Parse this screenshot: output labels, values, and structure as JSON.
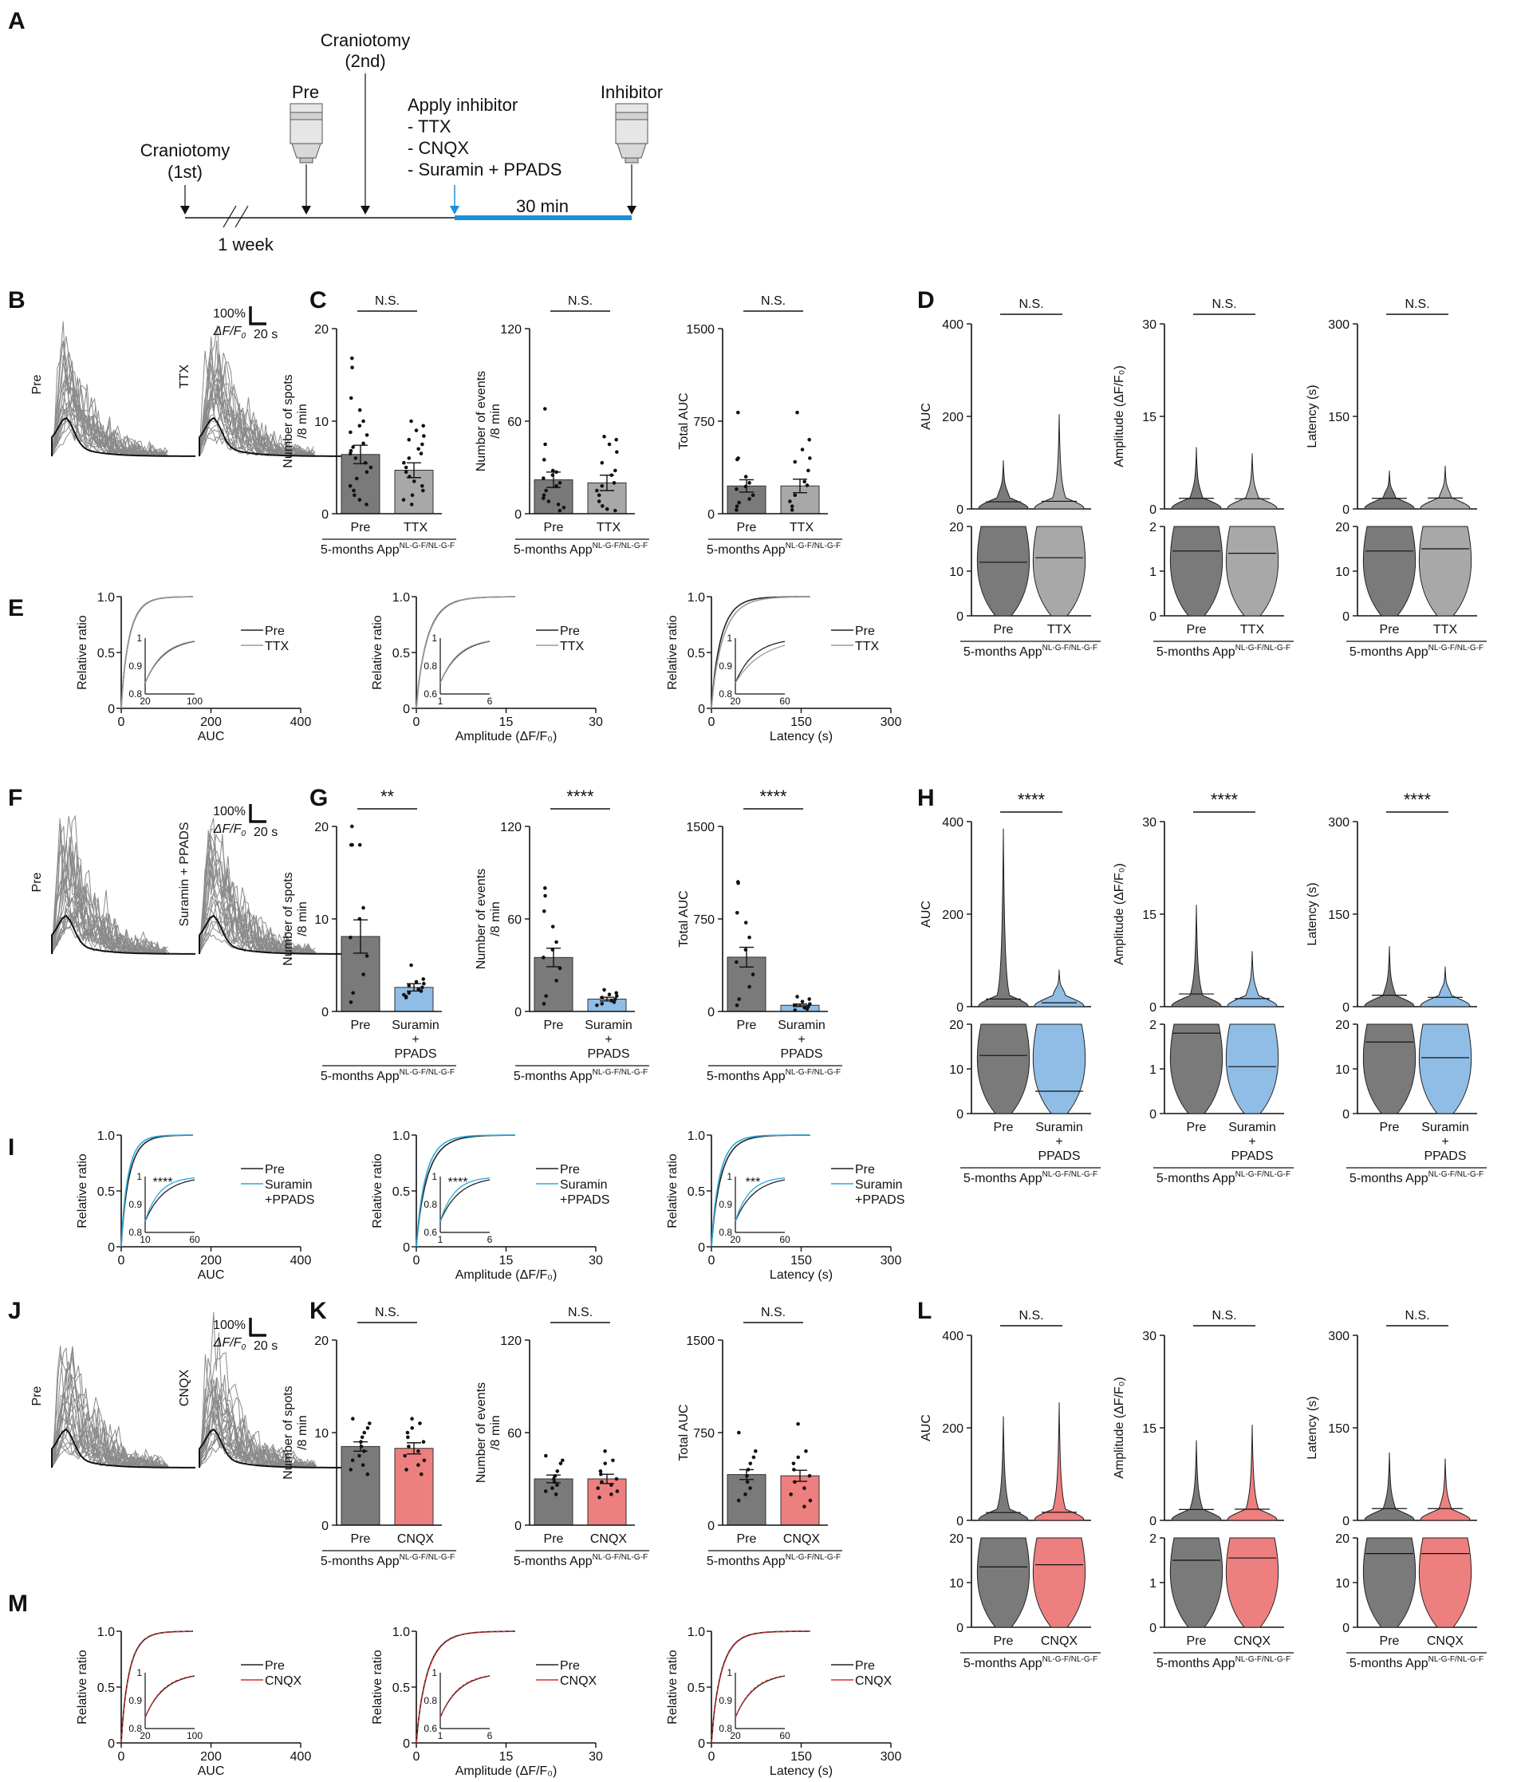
{
  "panel_labels": [
    "A",
    "B",
    "C",
    "D",
    "E",
    "F",
    "G",
    "H",
    "I",
    "J",
    "K",
    "L",
    "M"
  ],
  "timeline": {
    "craniotomy1": "Craniotomy",
    "craniotomy1_sub": "(1st)",
    "craniotomy2": "Craniotomy",
    "craniotomy2_sub": "(2nd)",
    "pre": "Pre",
    "apply_inhibitor": "Apply inhibitor",
    "ttx": "- TTX",
    "cnqx": "- CNQX",
    "suramin": "- Suramin + PPADS",
    "inhibitor": "Inhibitor",
    "week": "1 week",
    "min30": "30 min",
    "colors": {
      "blue": "#1a8fdc",
      "line": "#111111"
    }
  },
  "common": {
    "genotype": "5-months App",
    "genotype_sup": "NL-G-F/NL-G-F",
    "ns": "N.S.",
    "scale_pct": "100%",
    "scale_dff": "ΔF/F",
    "scale_dff_sub": "0",
    "scale_s": "20 s",
    "pre": "Pre",
    "relative_ratio": "Relative ratio",
    "auc": "AUC",
    "amplitude": "Amplitude (ΔF/F₀)",
    "latency": "Latency (s)",
    "spots_label": "Number of spots",
    "spots_label2": "/8 min",
    "events_label": "Number of events",
    "events_label2": "/8 min",
    "total_auc": "Total AUC",
    "amplitude_y": "Amplitude (ΔF/F₀)",
    "latency_y": "Latency (s)",
    "colors": {
      "pre": "#7a7a7a",
      "ttx": "#a8a8a8",
      "suramin": "#8fbde6",
      "cnqx": "#ee7f7f",
      "suramin_line": "#2aa7d8",
      "cnqx_line": "#d62b2b"
    }
  },
  "sections": [
    {
      "id": "ttx",
      "treatment": "TTX",
      "treatment_lines": [
        "TTX"
      ],
      "trace_label": "TTX",
      "sig": {
        "spots": "N.S.",
        "events": "N.S.",
        "auc": "N.S."
      },
      "violin_sig": {
        "auc": "N.S.",
        "amp": "N.S.",
        "lat": "N.S."
      },
      "cdf_sig": {
        "auc": "",
        "amp": "",
        "lat": ""
      },
      "legend": [
        "Pre",
        "TTX"
      ]
    },
    {
      "id": "sur",
      "treatment": "Suramin + PPADS",
      "treatment_lines": [
        "Suramin",
        "+",
        "PPADS"
      ],
      "trace_label": "Suramin + PPADS",
      "sig": {
        "spots": "**",
        "events": "****",
        "auc": "****"
      },
      "violin_sig": {
        "auc": "****",
        "amp": "****",
        "lat": "****"
      },
      "cdf_sig": {
        "auc": "****",
        "amp": "****",
        "lat": "***"
      },
      "legend": [
        "Pre",
        "Suramin",
        "+PPADS"
      ]
    },
    {
      "id": "cnqx",
      "treatment": "CNQX",
      "treatment_lines": [
        "CNQX"
      ],
      "trace_label": "CNQX",
      "sig": {
        "spots": "N.S.",
        "events": "N.S.",
        "auc": "N.S."
      },
      "violin_sig": {
        "auc": "N.S.",
        "amp": "N.S.",
        "lat": "N.S."
      },
      "cdf_sig": {
        "auc": "",
        "amp": "",
        "lat": ""
      },
      "legend": [
        "Pre",
        "CNQX"
      ]
    }
  ],
  "chart_data": [
    {
      "type": "bar",
      "panel": "C",
      "metric": "Number of spots /8 min",
      "categories": [
        "Pre",
        "TTX"
      ],
      "values": [
        6.4,
        4.7
      ],
      "sem": [
        1.0,
        0.8
      ],
      "ylim": [
        0,
        20
      ],
      "yticks": [
        0,
        10,
        20
      ],
      "points": [
        [
          16.8,
          15.8,
          12.5,
          11.2,
          10.0,
          9.5,
          8.8,
          8.5,
          7.6,
          7.2,
          6.8,
          6.5,
          6.0,
          5.5,
          5.0,
          4.5,
          3.8,
          3.0,
          2.5,
          2.0,
          1.5,
          1.0
        ],
        [
          10.0,
          9.5,
          9.0,
          8.4,
          8.0,
          7.5,
          7.0,
          6.5,
          6.0,
          5.5,
          5.0,
          4.5,
          4.0,
          3.5,
          3.0,
          2.5,
          2.0,
          1.5,
          1.0
        ]
      ]
    },
    {
      "type": "bar",
      "panel": "C",
      "metric": "Number of events /8 min",
      "categories": [
        "Pre",
        "TTX"
      ],
      "values": [
        22,
        20
      ],
      "sem": [
        5,
        5
      ],
      "ylim": [
        0,
        120
      ],
      "yticks": [
        0,
        60,
        120
      ],
      "points": [
        [
          68,
          45,
          35,
          28,
          27,
          25,
          23,
          20,
          18,
          15,
          12,
          10,
          8,
          6,
          4,
          2
        ],
        [
          50,
          48,
          45,
          40,
          33,
          28,
          25,
          20,
          18,
          15,
          12,
          8,
          5,
          3,
          2
        ]
      ]
    },
    {
      "type": "bar",
      "panel": "C",
      "metric": "Total AUC",
      "categories": [
        "Pre",
        "TTX"
      ],
      "values": [
        225,
        225
      ],
      "sem": [
        50,
        55
      ],
      "ylim": [
        0,
        1500
      ],
      "yticks": [
        0,
        750,
        1500
      ],
      "points": [
        [
          820,
          450,
          440,
          300,
          250,
          220,
          200,
          150,
          120,
          90,
          60,
          30
        ],
        [
          820,
          600,
          520,
          450,
          420,
          350,
          260,
          230,
          150,
          100,
          60,
          30
        ]
      ]
    },
    {
      "type": "bar",
      "panel": "G",
      "metric": "Number of spots /8 min",
      "categories": [
        "Pre",
        "Suramin + PPADS"
      ],
      "values": [
        8.1,
        2.6
      ],
      "sem": [
        1.8,
        0.4
      ],
      "ylim": [
        0,
        20
      ],
      "yticks": [
        0,
        10,
        20
      ],
      "points": [
        [
          20.0,
          18.0,
          18.0,
          18.0,
          11.2,
          10.0,
          8.0,
          6.0,
          4.0,
          2.0,
          1.0
        ],
        [
          5.0,
          3.5,
          3.2,
          3.0,
          2.8,
          2.6,
          2.4,
          2.2,
          2.0,
          1.8,
          1.6,
          1.5
        ]
      ]
    },
    {
      "type": "bar",
      "panel": "G",
      "metric": "Number of events /8 min",
      "categories": [
        "Pre",
        "Suramin + PPADS"
      ],
      "values": [
        35,
        8
      ],
      "sem": [
        6,
        1.2
      ],
      "ylim": [
        0,
        120
      ],
      "yticks": [
        0,
        60,
        120
      ],
      "points": [
        [
          80,
          75,
          65,
          55,
          45,
          40,
          35,
          28,
          20,
          10,
          5
        ],
        [
          14,
          12,
          11,
          10,
          9,
          8,
          7,
          6,
          5,
          4
        ]
      ]
    },
    {
      "type": "bar",
      "panel": "G",
      "metric": "Total AUC",
      "categories": [
        "Pre",
        "Suramin + PPADS"
      ],
      "values": [
        440,
        50
      ],
      "sem": [
        80,
        10
      ],
      "ylim": [
        0,
        1500
      ],
      "yticks": [
        0,
        750,
        1500
      ],
      "points": [
        [
          1050,
          1040,
          800,
          720,
          600,
          500,
          400,
          300,
          200,
          100,
          50
        ],
        [
          120,
          100,
          80,
          60,
          50,
          40,
          30,
          20,
          10
        ]
      ]
    },
    {
      "type": "bar",
      "panel": "K",
      "metric": "Number of spots /8 min",
      "categories": [
        "Pre",
        "CNQX"
      ],
      "values": [
        8.5,
        8.3
      ],
      "sem": [
        0.5,
        0.6
      ],
      "ylim": [
        0,
        20
      ],
      "yticks": [
        0,
        10,
        20
      ],
      "points": [
        [
          11.5,
          11.0,
          10.5,
          10.0,
          9.5,
          9.0,
          8.5,
          8.0,
          7.5,
          7.0,
          6.5,
          6.0,
          5.5
        ],
        [
          11.5,
          11.0,
          10.5,
          10.0,
          9.5,
          9.0,
          8.5,
          8.0,
          7.5,
          7.0,
          6.5,
          6.0,
          5.5
        ]
      ]
    },
    {
      "type": "bar",
      "panel": "K",
      "metric": "Number of events /8 min",
      "categories": [
        "Pre",
        "CNQX"
      ],
      "values": [
        30,
        30
      ],
      "sem": [
        2.5,
        3
      ],
      "ylim": [
        0,
        120
      ],
      "yticks": [
        0,
        60,
        120
      ],
      "points": [
        [
          45,
          42,
          40,
          35,
          32,
          30,
          28,
          26,
          24,
          22,
          20
        ],
        [
          48,
          42,
          40,
          35,
          33,
          30,
          28,
          26,
          24,
          22,
          20,
          18
        ]
      ]
    },
    {
      "type": "bar",
      "panel": "K",
      "metric": "Total AUC",
      "categories": [
        "Pre",
        "CNQX"
      ],
      "values": [
        410,
        400
      ],
      "sem": [
        40,
        45
      ],
      "ylim": [
        0,
        1500
      ],
      "yticks": [
        0,
        750,
        1500
      ],
      "points": [
        [
          750,
          600,
          550,
          500,
          450,
          400,
          350,
          300,
          250,
          200
        ],
        [
          820,
          600,
          550,
          500,
          450,
          400,
          350,
          300,
          250,
          200,
          150
        ]
      ]
    },
    {
      "type": "violin",
      "panel": "D",
      "metrics": [
        "AUC",
        "Amplitude (ΔF/F₀)",
        "Latency (s)"
      ],
      "top_ylims": [
        [
          0,
          400
        ],
        [
          0,
          30
        ],
        [
          0,
          300
        ]
      ],
      "top_yticks": [
        [
          0,
          200,
          400
        ],
        [
          0,
          15,
          30
        ],
        [
          0,
          150,
          300
        ]
      ],
      "bottom_ylims": [
        [
          0,
          20
        ],
        [
          0,
          2
        ],
        [
          0,
          20
        ]
      ],
      "bottom_yticks": [
        [
          0,
          10,
          20
        ],
        [
          0,
          1,
          2
        ],
        [
          0,
          10,
          20
        ]
      ],
      "series_max": [
        [
          105,
          205
        ],
        [
          10,
          9
        ],
        [
          62,
          70
        ]
      ],
      "bottom_medians": [
        [
          12,
          13
        ],
        [
          1.45,
          1.4
        ],
        [
          14.5,
          15
        ]
      ]
    },
    {
      "type": "violin",
      "panel": "H",
      "metrics": [
        "AUC",
        "Amplitude (ΔF/F₀)",
        "Latency (s)"
      ],
      "top_ylims": [
        [
          0,
          400
        ],
        [
          0,
          30
        ],
        [
          0,
          300
        ]
      ],
      "top_yticks": [
        [
          0,
          200,
          400
        ],
        [
          0,
          15,
          30
        ],
        [
          0,
          150,
          300
        ]
      ],
      "bottom_ylims": [
        [
          0,
          20
        ],
        [
          0,
          2
        ],
        [
          0,
          20
        ]
      ],
      "bottom_yticks": [
        [
          0,
          10,
          20
        ],
        [
          0,
          1,
          2
        ],
        [
          0,
          10,
          20
        ]
      ],
      "series_max": [
        [
          385,
          80
        ],
        [
          16.5,
          9
        ],
        [
          98,
          65
        ]
      ],
      "bottom_medians": [
        [
          13,
          5
        ],
        [
          1.8,
          1.05
        ],
        [
          16,
          12.5
        ]
      ]
    },
    {
      "type": "violin",
      "panel": "L",
      "metrics": [
        "AUC",
        "Amplitude (ΔF/F₀)",
        "Latency (s)"
      ],
      "top_ylims": [
        [
          0,
          400
        ],
        [
          0,
          30
        ],
        [
          0,
          300
        ]
      ],
      "top_yticks": [
        [
          0,
          200,
          400
        ],
        [
          0,
          15,
          30
        ],
        [
          0,
          150,
          300
        ]
      ],
      "bottom_ylims": [
        [
          0,
          20
        ],
        [
          0,
          2
        ],
        [
          0,
          20
        ]
      ],
      "bottom_yticks": [
        [
          0,
          10,
          20
        ],
        [
          0,
          1,
          2
        ],
        [
          0,
          10,
          20
        ]
      ],
      "series_max": [
        [
          225,
          255
        ],
        [
          13,
          15.5
        ],
        [
          110,
          100
        ]
      ],
      "bottom_medians": [
        [
          13.5,
          14
        ],
        [
          1.5,
          1.55
        ],
        [
          16.5,
          16.5
        ]
      ]
    },
    {
      "type": "line",
      "panel": "E",
      "metrics": [
        "AUC",
        "Amplitude (ΔF/F₀)",
        "Latency (s)"
      ],
      "xlims": [
        [
          0,
          400
        ],
        [
          0,
          30
        ],
        [
          0,
          300
        ]
      ],
      "xticks": [
        [
          0,
          200,
          400
        ],
        [
          0,
          15,
          30
        ],
        [
          0,
          150,
          300
        ]
      ],
      "ylim": [
        0,
        1
      ],
      "yticks": [
        0,
        0.5,
        1.0
      ],
      "inset_xlims": [
        [
          20,
          100
        ],
        [
          1,
          6
        ],
        [
          20,
          60
        ]
      ],
      "inset_ylims": [
        [
          0.8,
          1.0
        ],
        [
          0.6,
          1.0
        ],
        [
          0.8,
          1.0
        ]
      ],
      "inset_yticks": [
        [
          0.8,
          0.9,
          1
        ],
        [
          0.6,
          0.8,
          1
        ],
        [
          0.8,
          0.9,
          1
        ]
      ],
      "legend": [
        "Pre",
        "TTX"
      ]
    },
    {
      "type": "line",
      "panel": "I",
      "metrics": [
        "AUC",
        "Amplitude (ΔF/F₀)",
        "Latency (s)"
      ],
      "xlims": [
        [
          0,
          400
        ],
        [
          0,
          30
        ],
        [
          0,
          300
        ]
      ],
      "xticks": [
        [
          0,
          200,
          400
        ],
        [
          0,
          15,
          30
        ],
        [
          0,
          150,
          300
        ]
      ],
      "ylim": [
        0,
        1
      ],
      "yticks": [
        0,
        0.5,
        1.0
      ],
      "inset_xlims": [
        [
          10,
          60
        ],
        [
          1,
          6
        ],
        [
          20,
          60
        ]
      ],
      "inset_ylims": [
        [
          0.8,
          1.0
        ],
        [
          0.6,
          1.0
        ],
        [
          0.8,
          1.0
        ]
      ],
      "inset_yticks": [
        [
          0.8,
          0.9,
          1
        ],
        [
          0.6,
          0.8,
          1
        ],
        [
          0.8,
          0.9,
          1
        ]
      ],
      "legend": [
        "Pre",
        "Suramin +PPADS"
      ]
    },
    {
      "type": "line",
      "panel": "M",
      "metrics": [
        "AUC",
        "Amplitude (ΔF/F₀)",
        "Latency (s)"
      ],
      "xlims": [
        [
          0,
          400
        ],
        [
          0,
          30
        ],
        [
          0,
          300
        ]
      ],
      "xticks": [
        [
          0,
          200,
          400
        ],
        [
          0,
          15,
          30
        ],
        [
          0,
          150,
          300
        ]
      ],
      "ylim": [
        0,
        1
      ],
      "yticks": [
        0,
        0.5,
        1.0
      ],
      "inset_xlims": [
        [
          20,
          100
        ],
        [
          1,
          6
        ],
        [
          20,
          60
        ]
      ],
      "inset_ylims": [
        [
          0.8,
          1.0
        ],
        [
          0.6,
          1.0
        ],
        [
          0.8,
          1.0
        ]
      ],
      "inset_yticks": [
        [
          0.8,
          0.9,
          1
        ],
        [
          0.6,
          0.8,
          1
        ],
        [
          0.8,
          0.9,
          1
        ]
      ],
      "legend": [
        "Pre",
        "CNQX"
      ]
    }
  ]
}
